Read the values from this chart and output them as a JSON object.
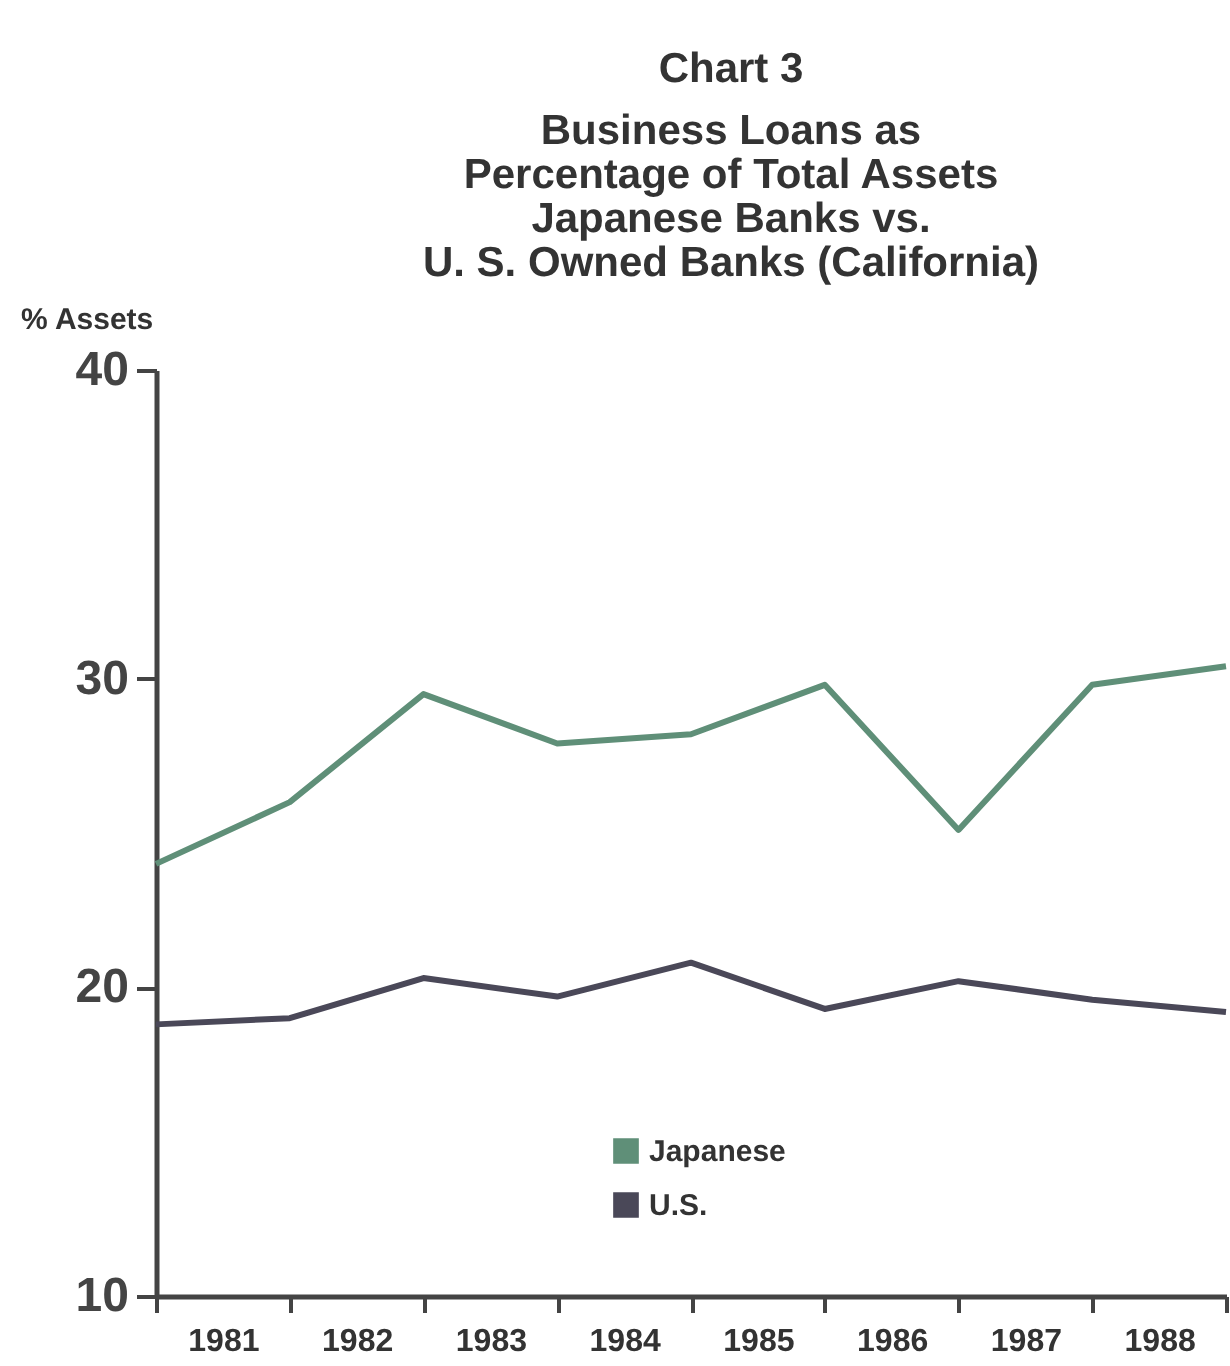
{
  "chart_data": {
    "type": "line",
    "title": "Chart 3",
    "subtitle": "Business Loans as\nPercentage of Total Assets\nJapanese Banks vs.\nU. S. Owned Banks (California)",
    "ylabel": "% Assets",
    "x": [
      1981,
      1982,
      1983,
      1984,
      1985,
      1986,
      1987,
      1988,
      1989
    ],
    "series": [
      {
        "name": "Japanese",
        "color": "#5f8f78",
        "values": [
          24.0,
          26.0,
          29.5,
          27.9,
          28.2,
          29.8,
          25.1,
          29.8,
          30.4
        ]
      },
      {
        "name": "U.S.",
        "color": "#4a4858",
        "values": [
          18.8,
          19.0,
          20.3,
          19.7,
          20.8,
          19.3,
          20.2,
          19.6,
          19.2
        ]
      }
    ],
    "xlim": [
      1981,
      1989
    ],
    "xticks": [
      {
        "value": 1981,
        "label": null
      },
      {
        "value": 1981.5,
        "label": "1981"
      },
      {
        "value": 1982,
        "label": null
      },
      {
        "value": 1982.5,
        "label": "1982"
      },
      {
        "value": 1983,
        "label": null
      },
      {
        "value": 1983.5,
        "label": "1983"
      },
      {
        "value": 1984,
        "label": null
      },
      {
        "value": 1984.5,
        "label": "1984"
      },
      {
        "value": 1985,
        "label": null
      },
      {
        "value": 1985.5,
        "label": "1985"
      },
      {
        "value": 1986,
        "label": null
      },
      {
        "value": 1986.5,
        "label": "1986"
      },
      {
        "value": 1987,
        "label": null
      },
      {
        "value": 1987.5,
        "label": "1987"
      },
      {
        "value": 1988,
        "label": null
      },
      {
        "value": 1988.5,
        "label": "1988"
      },
      {
        "value": 1989,
        "label": null
      }
    ],
    "ylim": [
      10,
      40
    ],
    "yticks": [
      10,
      20,
      30,
      40
    ],
    "grid": false,
    "legend": "bottom",
    "marker": "none",
    "line_style": "solid"
  }
}
